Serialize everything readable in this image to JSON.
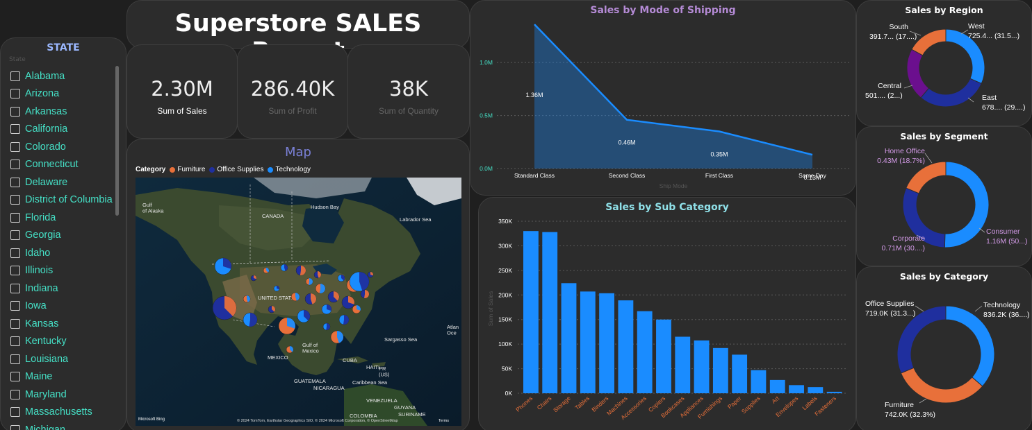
{
  "slicer": {
    "title": "STATE",
    "hint": "State",
    "states": [
      "Alabama",
      "Arizona",
      "Arkansas",
      "California",
      "Colorado",
      "Connecticut",
      "Delaware",
      "District of Columbia",
      "Florida",
      "Georgia",
      "Idaho",
      "Illinois",
      "Indiana",
      "Iowa",
      "Kansas",
      "Kentucky",
      "Louisiana",
      "Maine",
      "Maryland",
      "Massachusetts",
      "Michigan"
    ]
  },
  "header": {
    "title": "Superstore SALES Report"
  },
  "kpis": [
    {
      "value": "2.30M",
      "label": "Sum of Sales",
      "label_color": "#ffffff"
    },
    {
      "value": "286.40K",
      "label": "Sum of Profit",
      "label_color": "#666666"
    },
    {
      "value": "38K",
      "label": "Sum of Quantity",
      "label_color": "#666666"
    }
  ],
  "map": {
    "title": "Map",
    "legend_title": "Category",
    "legend": [
      {
        "name": "Furniture",
        "color": "#e8703a"
      },
      {
        "name": "Office Supplies",
        "color": "#1f2f9e"
      },
      {
        "name": "Technology",
        "color": "#1a8cff"
      }
    ],
    "labels": {
      "gulf_alaska": "Gulf\nof Alaska",
      "hudson": "Hudson Bay",
      "canada": "CANADA",
      "labrador": "Labrador Sea",
      "us": "UNITED STATES",
      "gulf_mexico": "Gulf of\nMexico",
      "mexico": "MEXICO",
      "sargasso": "Sargasso Sea",
      "atlantic": "Atlan\nOce",
      "cuba": "CUBA",
      "haiti": "HAITI",
      "pr": "PR\n(US)",
      "guatemala": "GUATEMALA",
      "nicaragua": "NICARAGUA",
      "caribbean": "Caribbean Sea",
      "venezuela": "VENEZUELA",
      "guyana": "GUYANA",
      "suriname": "SURINAME",
      "colombia": "COLOMBIA"
    },
    "bing": "Microsoft Bing",
    "copyright": "© 2024 TomTom, Earthstar Geographics SIO, © 2024 Microsoft Corporation, © OpenStreetMap",
    "terms": "Terms"
  },
  "shipping": {
    "title": "Sales by Mode of Shipping",
    "xlabel": "Ship Mode",
    "area_color": "#1a8cff"
  },
  "subcategory": {
    "title": "Sales by Sub Category",
    "ylabel": "Sum of Sales",
    "bar_color": "#1a8cff",
    "label_color": "#e8703a"
  },
  "region": {
    "title": "Sales by Region",
    "labels": [
      {
        "name": "West",
        "value": "725.4... (31.5...)"
      },
      {
        "name": "East",
        "value": "678.... (29....)"
      },
      {
        "name": "Central",
        "value": "501.... (2...)"
      },
      {
        "name": "South",
        "value": "391.7... (17....)"
      }
    ]
  },
  "segment": {
    "title": "Sales by Segment",
    "label_color": "#d49be8",
    "labels": [
      {
        "name": "Consumer",
        "value": "1.16M (50...)"
      },
      {
        "name": "Corporate",
        "value": "0.71M (30....)"
      },
      {
        "name": "Home Office",
        "value": "0.43M (18.7%)"
      }
    ]
  },
  "category": {
    "title": "Sales by Category",
    "labels": [
      {
        "name": "Technology",
        "value": "836.2K (36....)"
      },
      {
        "name": "Furniture",
        "value": "742.0K (32.3%)"
      },
      {
        "name": "Office Supplies",
        "value": "719.0K (31.3...)"
      }
    ]
  },
  "chart_data": [
    {
      "type": "area",
      "title": "Sales by Mode of Shipping",
      "xlabel": "Ship Mode",
      "ylabel": "",
      "categories": [
        "Standard Class",
        "Second Class",
        "First Class",
        "Same Day"
      ],
      "values": [
        1.36,
        0.46,
        0.35,
        0.13
      ],
      "data_labels": [
        "1.36M",
        "0.46M",
        "0.35M",
        "0.13M"
      ],
      "y_ticks": [
        "0.0M",
        "0.5M",
        "1.0M"
      ],
      "ylim": [
        0,
        1.4
      ],
      "grid": true
    },
    {
      "type": "bar",
      "title": "Sales by Sub Category",
      "xlabel": "",
      "ylabel": "Sum of Sales",
      "categories": [
        "Phones",
        "Chairs",
        "Storage",
        "Tables",
        "Binders",
        "Machines",
        "Accessories",
        "Copiers",
        "Bookcases",
        "Appliances",
        "Furnishings",
        "Paper",
        "Supplies",
        "Art",
        "Envelopes",
        "Labels",
        "Fasteners"
      ],
      "values": [
        330000,
        328000,
        224000,
        207000,
        203500,
        189000,
        167000,
        150000,
        115000,
        107500,
        92000,
        78500,
        47000,
        27000,
        16500,
        12500,
        3000
      ],
      "y_ticks": [
        "0K",
        "50K",
        "100K",
        "150K",
        "200K",
        "250K",
        "300K",
        "350K"
      ],
      "ylim": [
        0,
        350000
      ],
      "grid": true
    },
    {
      "type": "pie",
      "title": "Sales by Region",
      "categories": [
        "West",
        "East",
        "Central",
        "South"
      ],
      "values": [
        725.4,
        678.8,
        501.2,
        391.7
      ],
      "colors": [
        "#1a8cff",
        "#1f2f9e",
        "#6b0f8e",
        "#e8703a"
      ]
    },
    {
      "type": "pie",
      "title": "Sales by Segment",
      "categories": [
        "Consumer",
        "Corporate",
        "Home Office"
      ],
      "values": [
        1.16,
        0.71,
        0.43
      ],
      "colors": [
        "#1a8cff",
        "#1f2f9e",
        "#e8703a"
      ]
    },
    {
      "type": "pie",
      "title": "Sales by Category",
      "categories": [
        "Technology",
        "Furniture",
        "Office Supplies"
      ],
      "values": [
        836.2,
        742.0,
        719.0
      ],
      "colors": [
        "#1a8cff",
        "#e8703a",
        "#1f2f9e"
      ]
    }
  ]
}
